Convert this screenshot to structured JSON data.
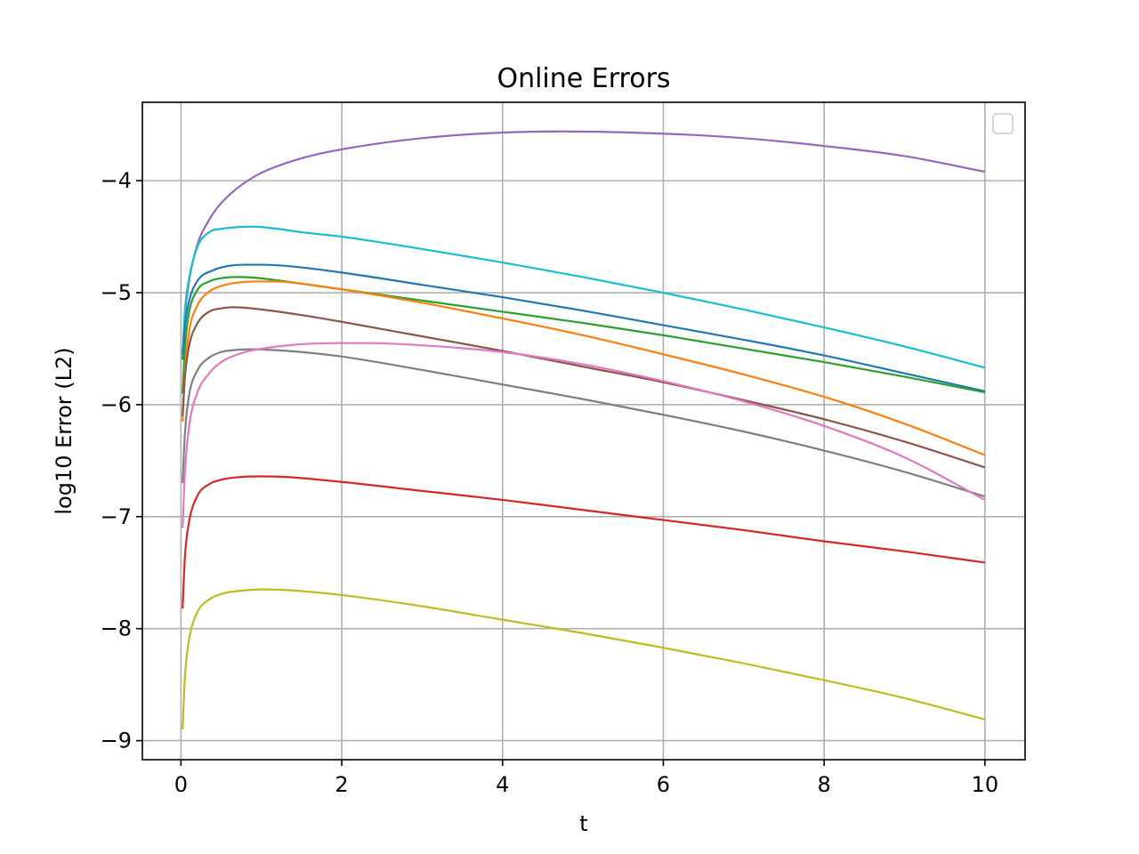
{
  "chart_data": {
    "type": "line",
    "title": "Online Errors",
    "xlabel": "t",
    "ylabel": "log10 Error (L2)",
    "xlim": [
      -0.48,
      10.5
    ],
    "ylim": [
      -9.17,
      -3.3
    ],
    "xticks": [
      0,
      2,
      4,
      6,
      8,
      10
    ],
    "xtick_labels": [
      "0",
      "2",
      "4",
      "6",
      "8",
      "10"
    ],
    "yticks": [
      -4,
      -5,
      -6,
      -7,
      -8,
      -9
    ],
    "ytick_labels": [
      "−4",
      "−5",
      "−6",
      "−7",
      "−8",
      "−9"
    ],
    "grid": true,
    "legend": {
      "placement": "upper right",
      "entries": []
    },
    "series": [
      {
        "color": "#9467bd",
        "x": [
          0.02,
          0.05,
          0.1,
          0.2,
          0.35,
          0.5,
          0.75,
          1.0,
          1.5,
          2.0,
          3.0,
          4.0,
          4.7,
          6.0,
          7.0,
          8.0,
          9.0,
          10.0
        ],
        "y": [
          -5.55,
          -5.2,
          -4.9,
          -4.58,
          -4.35,
          -4.2,
          -4.04,
          -3.93,
          -3.8,
          -3.72,
          -3.62,
          -3.57,
          -3.56,
          -3.58,
          -3.62,
          -3.69,
          -3.78,
          -3.92
        ]
      },
      {
        "color": "#17becf",
        "x": [
          0.02,
          0.05,
          0.1,
          0.2,
          0.35,
          0.5,
          0.7,
          0.9,
          1.2,
          1.5,
          2.0,
          3.0,
          4.0,
          5.0,
          6.0,
          7.0,
          8.0,
          9.0,
          10.0
        ],
        "y": [
          -5.55,
          -5.15,
          -4.88,
          -4.6,
          -4.46,
          -4.43,
          -4.415,
          -4.41,
          -4.43,
          -4.46,
          -4.5,
          -4.61,
          -4.73,
          -4.86,
          -5.0,
          -5.15,
          -5.31,
          -5.48,
          -5.67
        ]
      },
      {
        "color": "#1f77b4",
        "x": [
          0.02,
          0.05,
          0.1,
          0.2,
          0.4,
          0.6,
          0.8,
          1.0,
          1.3,
          2.0,
          3.0,
          4.0,
          5.0,
          6.0,
          7.0,
          8.0,
          9.0,
          10.0
        ],
        "y": [
          -5.6,
          -5.3,
          -5.08,
          -4.9,
          -4.8,
          -4.76,
          -4.75,
          -4.75,
          -4.76,
          -4.82,
          -4.93,
          -5.04,
          -5.16,
          -5.29,
          -5.42,
          -5.56,
          -5.72,
          -5.88
        ]
      },
      {
        "color": "#2ca02c",
        "x": [
          0.02,
          0.05,
          0.1,
          0.2,
          0.35,
          0.5,
          0.7,
          0.9,
          1.2,
          2.0,
          3.0,
          4.0,
          5.0,
          6.0,
          7.0,
          8.0,
          9.0,
          10.0
        ],
        "y": [
          -5.9,
          -5.48,
          -5.18,
          -4.98,
          -4.9,
          -4.87,
          -4.86,
          -4.865,
          -4.89,
          -4.97,
          -5.07,
          -5.17,
          -5.27,
          -5.38,
          -5.5,
          -5.62,
          -5.75,
          -5.89
        ]
      },
      {
        "color": "#ff7f0e",
        "x": [
          0.02,
          0.05,
          0.1,
          0.2,
          0.35,
          0.5,
          0.7,
          0.9,
          1.2,
          1.5,
          2.0,
          3.0,
          4.0,
          5.0,
          6.0,
          7.0,
          8.0,
          9.0,
          10.0
        ],
        "y": [
          -6.15,
          -5.7,
          -5.35,
          -5.12,
          -4.99,
          -4.94,
          -4.91,
          -4.9,
          -4.9,
          -4.92,
          -4.97,
          -5.09,
          -5.23,
          -5.38,
          -5.55,
          -5.73,
          -5.93,
          -6.17,
          -6.45
        ]
      },
      {
        "color": "#8c564b",
        "x": [
          0.02,
          0.05,
          0.1,
          0.2,
          0.35,
          0.5,
          0.65,
          0.8,
          1.0,
          1.5,
          2.0,
          3.0,
          4.0,
          5.0,
          6.0,
          7.0,
          8.0,
          9.0,
          10.0
        ],
        "y": [
          -6.1,
          -5.75,
          -5.48,
          -5.28,
          -5.17,
          -5.14,
          -5.13,
          -5.135,
          -5.15,
          -5.2,
          -5.26,
          -5.39,
          -5.52,
          -5.66,
          -5.8,
          -5.96,
          -6.13,
          -6.33,
          -6.56
        ]
      },
      {
        "color": "#7f7f7f",
        "x": [
          0.02,
          0.05,
          0.1,
          0.2,
          0.35,
          0.5,
          0.7,
          0.9,
          1.1,
          1.5,
          2.0,
          3.0,
          4.0,
          5.0,
          6.0,
          7.0,
          8.0,
          9.0,
          10.0
        ],
        "y": [
          -6.7,
          -6.25,
          -5.92,
          -5.7,
          -5.58,
          -5.53,
          -5.51,
          -5.505,
          -5.51,
          -5.53,
          -5.57,
          -5.69,
          -5.82,
          -5.95,
          -6.09,
          -6.24,
          -6.41,
          -6.6,
          -6.82
        ]
      },
      {
        "color": "#e377c2",
        "x": [
          0.02,
          0.05,
          0.1,
          0.2,
          0.35,
          0.5,
          0.75,
          1.0,
          1.5,
          2.0,
          2.3,
          3.0,
          4.0,
          5.0,
          6.0,
          7.0,
          8.0,
          9.0,
          10.0
        ],
        "y": [
          -7.1,
          -6.6,
          -6.2,
          -5.9,
          -5.72,
          -5.62,
          -5.54,
          -5.5,
          -5.46,
          -5.45,
          -5.45,
          -5.47,
          -5.53,
          -5.64,
          -5.79,
          -5.97,
          -6.19,
          -6.47,
          -6.85
        ]
      },
      {
        "color": "#d62728",
        "x": [
          0.02,
          0.05,
          0.1,
          0.2,
          0.35,
          0.5,
          0.75,
          1.0,
          1.3,
          2.0,
          3.0,
          4.0,
          5.0,
          6.0,
          7.0,
          8.0,
          9.0,
          10.0
        ],
        "y": [
          -7.82,
          -7.35,
          -7.05,
          -6.82,
          -6.71,
          -6.67,
          -6.645,
          -6.64,
          -6.645,
          -6.69,
          -6.77,
          -6.85,
          -6.94,
          -7.03,
          -7.12,
          -7.22,
          -7.31,
          -7.41
        ]
      },
      {
        "color": "#bcbd22",
        "x": [
          0.02,
          0.05,
          0.1,
          0.2,
          0.35,
          0.5,
          0.75,
          1.0,
          1.3,
          2.0,
          3.0,
          4.0,
          5.0,
          6.0,
          7.0,
          8.0,
          9.0,
          10.0
        ],
        "y": [
          -8.9,
          -8.42,
          -8.1,
          -7.86,
          -7.74,
          -7.69,
          -7.66,
          -7.65,
          -7.655,
          -7.7,
          -7.8,
          -7.92,
          -8.04,
          -8.17,
          -8.31,
          -8.46,
          -8.62,
          -8.81
        ]
      }
    ]
  }
}
